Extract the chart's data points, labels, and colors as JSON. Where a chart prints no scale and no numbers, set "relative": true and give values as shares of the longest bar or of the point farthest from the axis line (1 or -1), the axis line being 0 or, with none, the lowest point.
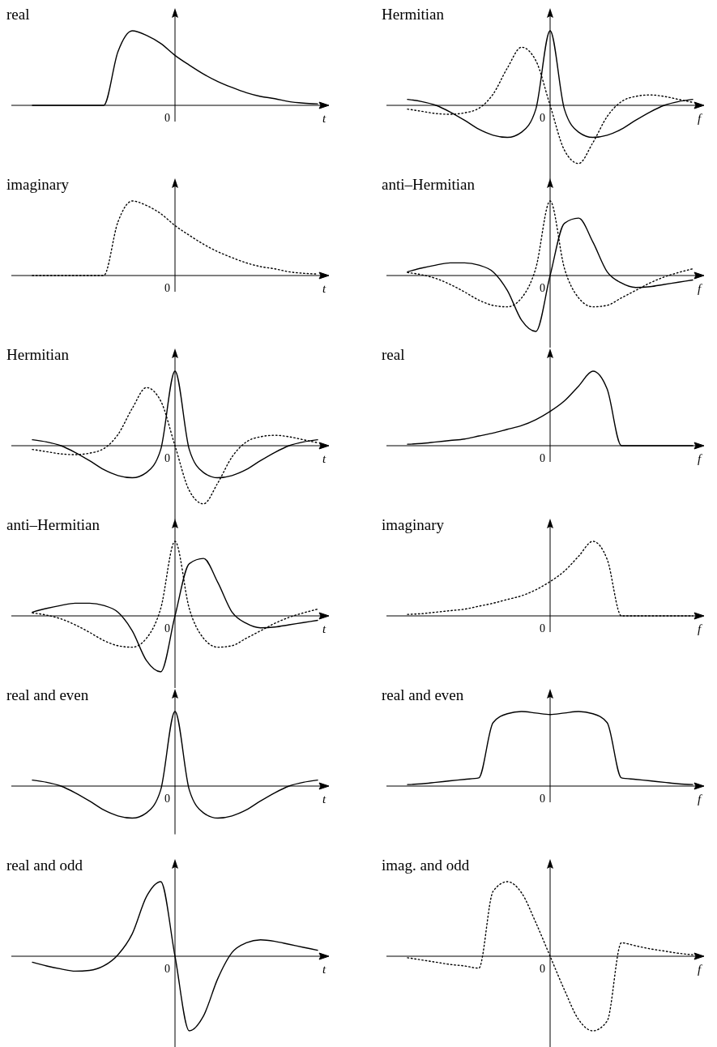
{
  "chart_data": [
    {
      "type": "line",
      "title": "real",
      "xlabel": "t",
      "annotations": [
        "0"
      ],
      "relative": true,
      "categories": [
        null,
        null,
        null,
        null,
        null,
        null,
        null,
        null,
        null,
        null,
        null,
        null,
        null,
        null,
        null,
        null,
        null,
        null,
        null,
        null,
        null
      ],
      "series": [
        {
          "color": "#000000",
          "line_style": "solid",
          "values": [
            0,
            0,
            0,
            0,
            0,
            0,
            0.72,
            1,
            0.94,
            0.83,
            0.67,
            0.54,
            0.42,
            0.32,
            0.24,
            0.17,
            0.12,
            0.09,
            0.05,
            0.03,
            0.02
          ]
        }
      ]
    },
    {
      "type": "line",
      "title": "Hermitian",
      "xlabel": "f",
      "annotations": [
        "0"
      ],
      "relative": true,
      "categories": [
        null,
        null,
        null,
        null,
        null,
        null,
        null,
        null,
        null,
        null,
        null,
        null,
        null,
        null,
        null,
        null,
        null,
        null,
        null,
        null,
        null
      ],
      "series": [
        {
          "color": "#000000",
          "line_style": "solid",
          "values": [
            0.08,
            0.05,
            0,
            -0.09,
            -0.2,
            -0.32,
            -0.4,
            -0.43,
            -0.36,
            -0.05,
            1,
            -0.05,
            -0.36,
            -0.43,
            -0.4,
            -0.32,
            -0.2,
            -0.09,
            0,
            0.05,
            0.08
          ]
        },
        {
          "color": "#000000",
          "line_style": "dotted",
          "values": [
            -0.05,
            -0.08,
            -0.11,
            -0.12,
            -0.1,
            -0.04,
            0.15,
            0.5,
            0.78,
            0.6,
            0,
            -0.6,
            -0.78,
            -0.5,
            -0.15,
            0.05,
            0.12,
            0.14,
            0.12,
            0.08,
            0.04
          ]
        }
      ]
    },
    {
      "type": "line",
      "title": "imaginary",
      "xlabel": "t",
      "annotations": [
        "0"
      ],
      "relative": true,
      "categories": [
        null,
        null,
        null,
        null,
        null,
        null,
        null,
        null,
        null,
        null,
        null,
        null,
        null,
        null,
        null,
        null,
        null,
        null,
        null,
        null,
        null
      ],
      "series": [
        {
          "color": "#000000",
          "line_style": "dotted",
          "values": [
            0,
            0,
            0,
            0,
            0,
            0,
            0.72,
            1,
            0.94,
            0.83,
            0.67,
            0.54,
            0.42,
            0.32,
            0.24,
            0.17,
            0.12,
            0.09,
            0.05,
            0.03,
            0.02
          ]
        }
      ]
    },
    {
      "type": "line",
      "title": "anti–Hermitian",
      "xlabel": "f",
      "annotations": [
        "0"
      ],
      "relative": true,
      "categories": [
        null,
        null,
        null,
        null,
        null,
        null,
        null,
        null,
        null,
        null,
        null,
        null,
        null,
        null,
        null,
        null,
        null,
        null,
        null,
        null,
        null
      ],
      "series": [
        {
          "color": "#000000",
          "line_style": "solid",
          "values": [
            0.05,
            0.1,
            0.14,
            0.17,
            0.17,
            0.14,
            0.05,
            -0.2,
            -0.6,
            -0.75,
            0,
            0.7,
            0.77,
            0.45,
            0.05,
            -0.1,
            -0.16,
            -0.15,
            -0.12,
            -0.09,
            -0.06
          ]
        },
        {
          "color": "#000000",
          "line_style": "dotted",
          "values": [
            0.04,
            0.01,
            -0.04,
            -0.12,
            -0.22,
            -0.33,
            -0.4,
            -0.42,
            -0.3,
            0.1,
            1,
            0.1,
            -0.3,
            -0.42,
            -0.4,
            -0.3,
            -0.2,
            -0.1,
            -0.02,
            0.04,
            0.09
          ]
        }
      ]
    },
    {
      "type": "line",
      "title": "Hermitian",
      "xlabel": "t",
      "annotations": [
        "0"
      ],
      "relative": true,
      "categories": [
        null,
        null,
        null,
        null,
        null,
        null,
        null,
        null,
        null,
        null,
        null,
        null,
        null,
        null,
        null,
        null,
        null,
        null,
        null,
        null,
        null
      ],
      "series": [
        {
          "color": "#000000",
          "line_style": "solid",
          "values": [
            0.08,
            0.05,
            0,
            -0.09,
            -0.2,
            -0.32,
            -0.4,
            -0.43,
            -0.36,
            -0.05,
            1,
            -0.05,
            -0.36,
            -0.43,
            -0.4,
            -0.32,
            -0.2,
            -0.09,
            0,
            0.05,
            0.08
          ]
        },
        {
          "color": "#000000",
          "line_style": "dotted",
          "values": [
            -0.05,
            -0.08,
            -0.11,
            -0.12,
            -0.1,
            -0.04,
            0.15,
            0.5,
            0.78,
            0.6,
            0,
            -0.6,
            -0.78,
            -0.5,
            -0.15,
            0.05,
            0.12,
            0.14,
            0.12,
            0.08,
            0.04
          ]
        }
      ]
    },
    {
      "type": "line",
      "title": "real",
      "xlabel": "f",
      "annotations": [
        "0"
      ],
      "relative": true,
      "categories": [
        null,
        null,
        null,
        null,
        null,
        null,
        null,
        null,
        null,
        null,
        null,
        null,
        null,
        null,
        null,
        null,
        null,
        null,
        null,
        null,
        null
      ],
      "series": [
        {
          "color": "#000000",
          "line_style": "solid",
          "values": [
            0.02,
            0.03,
            0.05,
            0.07,
            0.09,
            0.13,
            0.17,
            0.22,
            0.27,
            0.35,
            0.46,
            0.6,
            0.8,
            1,
            0.76,
            0,
            0,
            0,
            0,
            0,
            0
          ]
        }
      ]
    },
    {
      "type": "line",
      "title": "anti–Hermitian",
      "xlabel": "t",
      "annotations": [
        "0"
      ],
      "relative": true,
      "categories": [
        null,
        null,
        null,
        null,
        null,
        null,
        null,
        null,
        null,
        null,
        null,
        null,
        null,
        null,
        null,
        null,
        null,
        null,
        null,
        null,
        null
      ],
      "series": [
        {
          "color": "#000000",
          "line_style": "solid",
          "values": [
            0.05,
            0.1,
            0.14,
            0.17,
            0.17,
            0.14,
            0.05,
            -0.2,
            -0.6,
            -0.75,
            0,
            0.7,
            0.77,
            0.45,
            0.05,
            -0.1,
            -0.16,
            -0.15,
            -0.12,
            -0.09,
            -0.06
          ]
        },
        {
          "color": "#000000",
          "line_style": "dotted",
          "values": [
            0.04,
            0.01,
            -0.04,
            -0.12,
            -0.22,
            -0.33,
            -0.4,
            -0.42,
            -0.3,
            0.1,
            1,
            0.1,
            -0.3,
            -0.42,
            -0.4,
            -0.3,
            -0.2,
            -0.1,
            -0.02,
            0.04,
            0.09
          ]
        }
      ]
    },
    {
      "type": "line",
      "title": "imaginary",
      "xlabel": "f",
      "annotations": [
        "0"
      ],
      "relative": true,
      "categories": [
        null,
        null,
        null,
        null,
        null,
        null,
        null,
        null,
        null,
        null,
        null,
        null,
        null,
        null,
        null,
        null,
        null,
        null,
        null,
        null,
        null
      ],
      "series": [
        {
          "color": "#000000",
          "line_style": "dotted",
          "values": [
            0.02,
            0.03,
            0.05,
            0.07,
            0.09,
            0.13,
            0.17,
            0.22,
            0.27,
            0.35,
            0.46,
            0.6,
            0.8,
            1,
            0.76,
            0,
            0,
            0,
            0,
            0,
            0
          ]
        }
      ]
    },
    {
      "type": "line",
      "title": "real and even",
      "xlabel": "t",
      "annotations": [
        "0"
      ],
      "relative": true,
      "categories": [
        null,
        null,
        null,
        null,
        null,
        null,
        null,
        null,
        null,
        null,
        null,
        null,
        null,
        null,
        null,
        null,
        null,
        null,
        null,
        null,
        null
      ],
      "series": [
        {
          "color": "#000000",
          "line_style": "solid",
          "values": [
            0.08,
            0.05,
            0,
            -0.09,
            -0.2,
            -0.32,
            -0.4,
            -0.43,
            -0.36,
            -0.05,
            1,
            -0.05,
            -0.36,
            -0.43,
            -0.4,
            -0.32,
            -0.2,
            -0.09,
            0,
            0.05,
            0.08
          ]
        }
      ]
    },
    {
      "type": "line",
      "title": "real and even",
      "xlabel": "f",
      "annotations": [
        "0"
      ],
      "relative": true,
      "categories": [
        null,
        null,
        null,
        null,
        null,
        null,
        null,
        null,
        null,
        null,
        null,
        null,
        null,
        null,
        null,
        null,
        null,
        null,
        null,
        null,
        null
      ],
      "series": [
        {
          "color": "#000000",
          "line_style": "solid",
          "values": [
            0.02,
            0.03,
            0.05,
            0.07,
            0.09,
            0.11,
            0.85,
            0.97,
            1,
            0.98,
            0.96,
            0.98,
            1,
            0.97,
            0.85,
            0.11,
            0.09,
            0.07,
            0.05,
            0.03,
            0.02
          ]
        }
      ]
    },
    {
      "type": "line",
      "title": "real and odd",
      "xlabel": "t",
      "annotations": [
        "0"
      ],
      "relative": true,
      "categories": [
        null,
        null,
        null,
        null,
        null,
        null,
        null,
        null,
        null,
        null,
        null,
        null,
        null,
        null,
        null,
        null,
        null,
        null,
        null,
        null,
        null
      ],
      "series": [
        {
          "color": "#000000",
          "line_style": "solid",
          "values": [
            -0.08,
            -0.13,
            -0.17,
            -0.2,
            -0.19,
            -0.13,
            0.02,
            0.3,
            0.8,
            1,
            0,
            -1,
            -0.8,
            -0.3,
            0.05,
            0.18,
            0.22,
            0.2,
            0.16,
            0.12,
            0.08
          ]
        }
      ]
    },
    {
      "type": "line",
      "title": "imag. and odd",
      "xlabel": "f",
      "annotations": [
        "0"
      ],
      "relative": true,
      "categories": [
        null,
        null,
        null,
        null,
        null,
        null,
        null,
        null,
        null,
        null,
        null,
        null,
        null,
        null,
        null,
        null,
        null,
        null,
        null,
        null,
        null
      ],
      "series": [
        {
          "color": "#000000",
          "line_style": "dotted",
          "values": [
            -0.02,
            -0.05,
            -0.08,
            -0.11,
            -0.13,
            -0.16,
            0.87,
            1,
            0.85,
            0.45,
            0,
            -0.45,
            -0.85,
            -1,
            -0.87,
            0.18,
            0.14,
            0.1,
            0.07,
            0.04,
            0.02
          ]
        }
      ]
    }
  ]
}
